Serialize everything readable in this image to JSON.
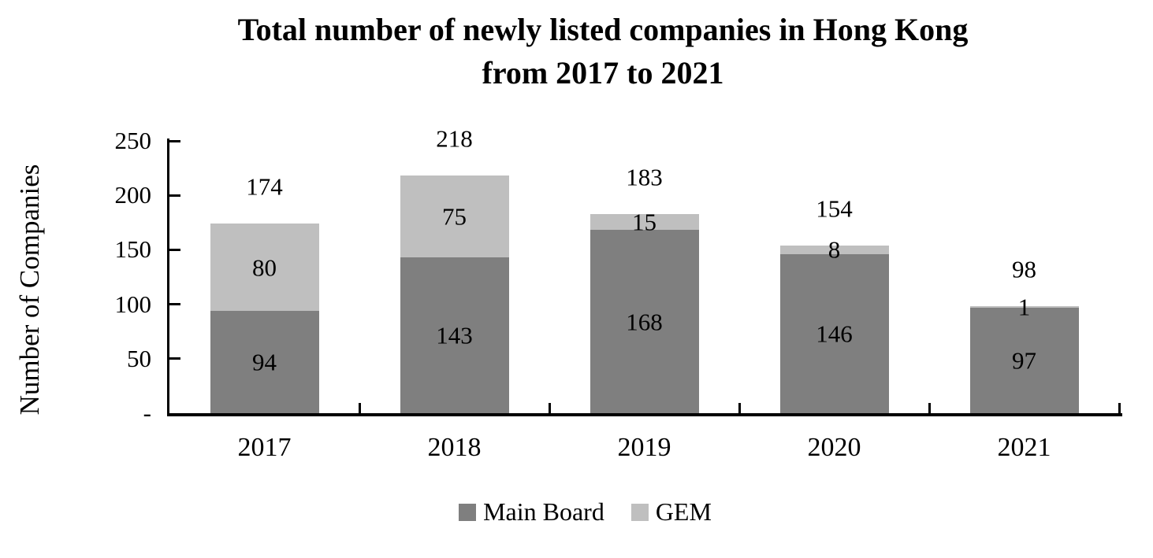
{
  "chart_data": {
    "type": "bar",
    "stacked": true,
    "title_line1": "Total number of newly listed companies in Hong Kong",
    "title_line2": "from 2017 to 2021",
    "ylabel": "Number of Companies",
    "xlabel": "",
    "categories": [
      "2017",
      "2018",
      "2019",
      "2020",
      "2021"
    ],
    "series": [
      {
        "name": "Main Board",
        "color": "#7F7F7F",
        "values": [
          94,
          143,
          168,
          146,
          97
        ]
      },
      {
        "name": "GEM",
        "color": "#BFBFBF",
        "values": [
          80,
          75,
          15,
          8,
          1
        ]
      }
    ],
    "totals": [
      174,
      218,
      183,
      154,
      98
    ],
    "ylim": [
      0,
      250
    ],
    "ytick_values": [
      0,
      50,
      100,
      150,
      200,
      250
    ],
    "ytick_labels": [
      "-",
      "50",
      "100",
      "150",
      "200",
      "250"
    ],
    "grid": false,
    "legend_position": "bottom",
    "axis_color": "#000000",
    "label_color": "#000000"
  }
}
